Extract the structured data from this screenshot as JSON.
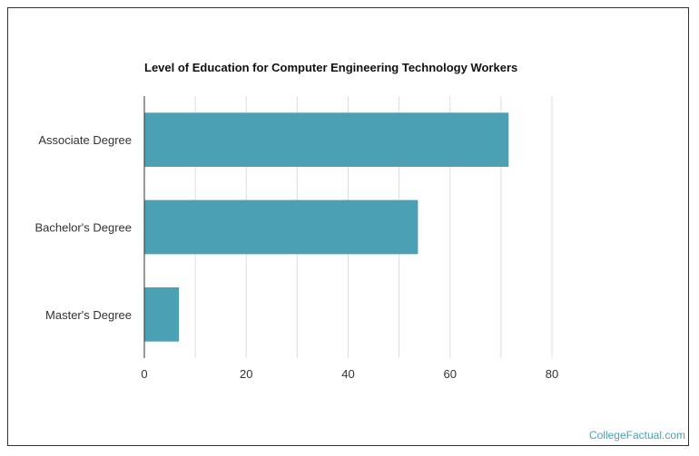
{
  "chart_data": {
    "type": "bar",
    "orientation": "horizontal",
    "title": "Level of Education for Computer Engineering Technology Workers",
    "categories": [
      "Associate Degree",
      "Bachelor's Degree",
      "Master's Degree"
    ],
    "values": [
      71.5,
      53.7,
      6.8
    ],
    "xlim": [
      0,
      80
    ],
    "xticks": [
      0,
      20,
      40,
      60,
      80
    ],
    "grid": true,
    "bar_color": "#4ba0b3"
  },
  "brand": {
    "text": "CollegeFactual.com"
  }
}
